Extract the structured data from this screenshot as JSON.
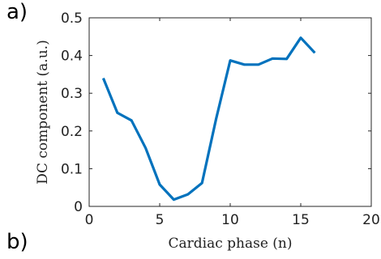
{
  "panel_labels": {
    "a": "a)",
    "b": "b)"
  },
  "chart_data": {
    "type": "line",
    "title": "",
    "xlabel": "Cardiac phase (n)",
    "ylabel": "DC component (a.u.)",
    "xlim": [
      0,
      20
    ],
    "ylim": [
      0,
      0.5
    ],
    "x_ticks": [
      "0",
      "5",
      "10",
      "15",
      "20"
    ],
    "y_ticks": [
      "0",
      "0.1",
      "0.2",
      "0.3",
      "0.4",
      "0.5"
    ],
    "grid": false,
    "line_color": "#0072BD",
    "series": [
      {
        "x": [
          1,
          2,
          3,
          4,
          5,
          6,
          7,
          8,
          9,
          10,
          11,
          12,
          13,
          14,
          15,
          16
        ],
        "y": [
          0.34,
          0.248,
          0.228,
          0.155,
          0.058,
          0.018,
          0.032,
          0.062,
          0.232,
          0.387,
          0.376,
          0.376,
          0.392,
          0.391,
          0.447,
          0.407
        ]
      }
    ]
  }
}
